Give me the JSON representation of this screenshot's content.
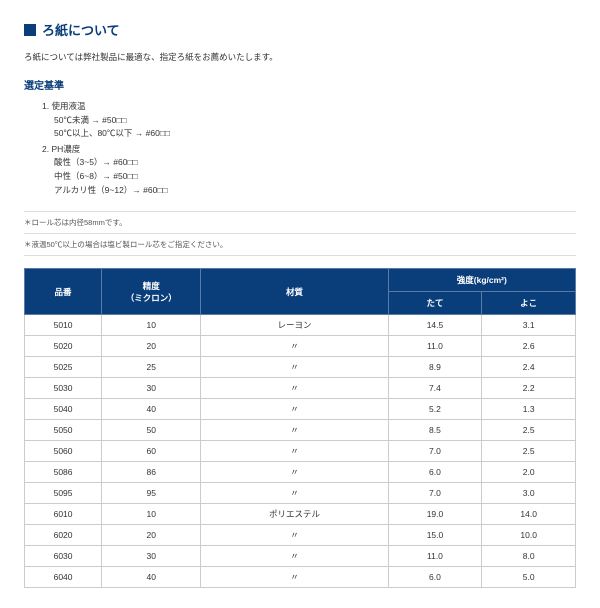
{
  "title": "ろ紙について",
  "intro": "ろ紙については弊社製品に最適な、指定ろ紙をお薦めいたします。",
  "criteria_head": "選定基準",
  "criteria": {
    "item1": "1. 使用液温",
    "item1a": "50℃未満 → #50□□",
    "item1b": "50℃以上、80℃以下 → #60□□",
    "item2": "2. PH濃度",
    "item2a": "酸性（3~5）→ #60□□",
    "item2b": "中性（6~8）→ #50□□",
    "item2c": "アルカリ性（9~12）→ #60□□"
  },
  "note1": "＊ロール芯は内径58mmです。",
  "note2": "＊液温50℃以上の場合は塩ビ製ロール芯をご指定ください。",
  "table": {
    "headers": {
      "h1": "品番",
      "h2": "精度",
      "h2sub": "（ミクロン）",
      "h3": "材質",
      "h4": "強度(kg/cm²)",
      "h4a": "たて",
      "h4b": "よこ"
    },
    "rows": [
      {
        "c1": "5010",
        "c2": "10",
        "c3": "レーヨン",
        "c4": "14.5",
        "c5": "3.1"
      },
      {
        "c1": "5020",
        "c2": "20",
        "c3": "〃",
        "c4": "11.0",
        "c5": "2.6"
      },
      {
        "c1": "5025",
        "c2": "25",
        "c3": "〃",
        "c4": "8.9",
        "c5": "2.4"
      },
      {
        "c1": "5030",
        "c2": "30",
        "c3": "〃",
        "c4": "7.4",
        "c5": "2.2"
      },
      {
        "c1": "5040",
        "c2": "40",
        "c3": "〃",
        "c4": "5.2",
        "c5": "1.3"
      },
      {
        "c1": "5050",
        "c2": "50",
        "c3": "〃",
        "c4": "8.5",
        "c5": "2.5"
      },
      {
        "c1": "5060",
        "c2": "60",
        "c3": "〃",
        "c4": "7.0",
        "c5": "2.5"
      },
      {
        "c1": "5086",
        "c2": "86",
        "c3": "〃",
        "c4": "6.0",
        "c5": "2.0"
      },
      {
        "c1": "5095",
        "c2": "95",
        "c3": "〃",
        "c4": "7.0",
        "c5": "3.0"
      },
      {
        "c1": "6010",
        "c2": "10",
        "c3": "ポリエステル",
        "c4": "19.0",
        "c5": "14.0"
      },
      {
        "c1": "6020",
        "c2": "20",
        "c3": "〃",
        "c4": "15.0",
        "c5": "10.0"
      },
      {
        "c1": "6030",
        "c2": "30",
        "c3": "〃",
        "c4": "11.0",
        "c5": "8.0"
      },
      {
        "c1": "6040",
        "c2": "40",
        "c3": "〃",
        "c4": "6.0",
        "c5": "5.0"
      }
    ]
  }
}
